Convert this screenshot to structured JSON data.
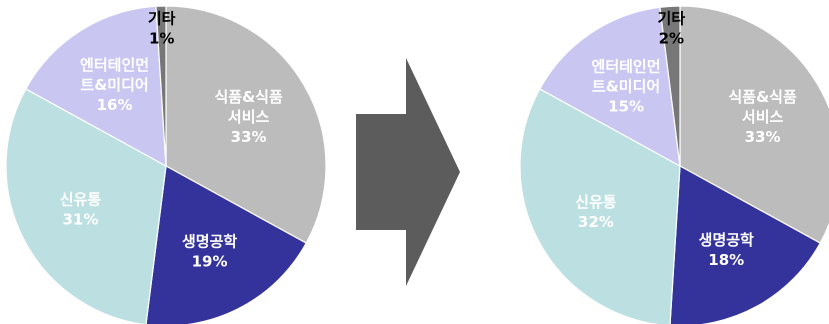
{
  "chart_data": [
    {
      "type": "pie",
      "slices": [
        {
          "label_lines": [
            "식품&식품",
            "서비스"
          ],
          "value": 33,
          "value_label": "33%",
          "color": "#bcbcbc",
          "text_color": "#ffffff"
        },
        {
          "label_lines": [
            "생명공학"
          ],
          "value": 19,
          "value_label": "19%",
          "color": "#33339b",
          "text_color": "#ffffff"
        },
        {
          "label_lines": [
            "신유통"
          ],
          "value": 31,
          "value_label": "31%",
          "color": "#bcdfe1",
          "text_color": "#ffffff"
        },
        {
          "label_lines": [
            "엔터테인먼",
            "트&미디어"
          ],
          "value": 16,
          "value_label": "16%",
          "color": "#c9c6f2",
          "text_color": "#ffffff"
        },
        {
          "label_lines": [
            "기타"
          ],
          "value": 1,
          "value_label": "1%",
          "color": "#777777",
          "text_color": "#000000"
        }
      ]
    },
    {
      "type": "pie",
      "slices": [
        {
          "label_lines": [
            "식품&식품",
            "서비스"
          ],
          "value": 33,
          "value_label": "33%",
          "color": "#bcbcbc",
          "text_color": "#ffffff"
        },
        {
          "label_lines": [
            "생명공학"
          ],
          "value": 18,
          "value_label": "18%",
          "color": "#33339b",
          "text_color": "#ffffff"
        },
        {
          "label_lines": [
            "신유통"
          ],
          "value": 32,
          "value_label": "32%",
          "color": "#bcdfe1",
          "text_color": "#ffffff"
        },
        {
          "label_lines": [
            "엔터테인먼",
            "트&미디어"
          ],
          "value": 15,
          "value_label": "15%",
          "color": "#c9c6f2",
          "text_color": "#ffffff"
        },
        {
          "label_lines": [
            "기타"
          ],
          "value": 2,
          "value_label": "2%",
          "color": "#777777",
          "text_color": "#000000"
        }
      ]
    }
  ],
  "arrow": {
    "color": "#5c5c5c",
    "direction": "right"
  }
}
